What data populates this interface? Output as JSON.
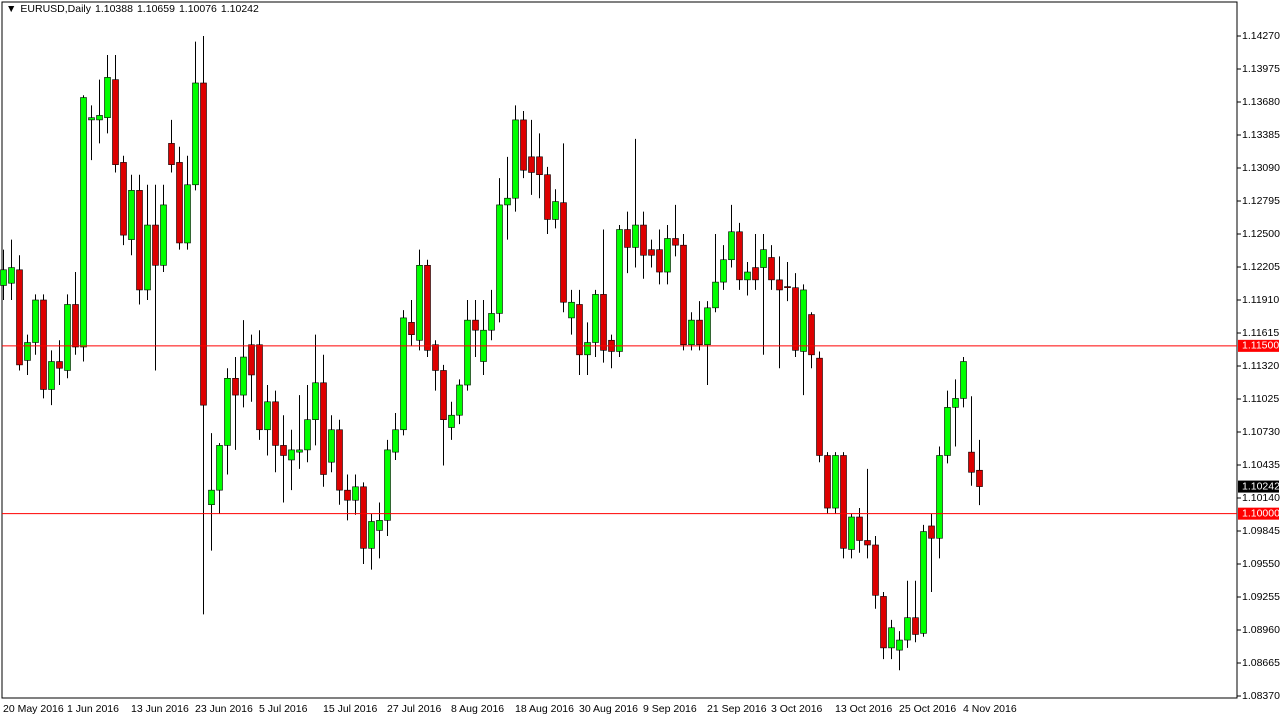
{
  "chart_data": {
    "type": "candlestick",
    "header": {
      "symbol": "EURUSD,Daily",
      "ohlc": [
        "1.10388",
        "1.10659",
        "1.10076",
        "1.10242"
      ]
    },
    "categories": [
      "20 May 2016",
      null,
      null,
      null,
      null,
      null,
      null,
      null,
      "1 Jun 2016",
      null,
      null,
      null,
      null,
      null,
      null,
      null,
      "13 Jun 2016",
      null,
      null,
      null,
      null,
      null,
      null,
      null,
      "23 Jun 2016",
      null,
      null,
      null,
      null,
      null,
      null,
      null,
      "5 Jul 2016",
      null,
      null,
      null,
      null,
      null,
      null,
      null,
      "15 Jul 2016",
      null,
      null,
      null,
      null,
      null,
      null,
      null,
      "27 Jul 2016",
      null,
      null,
      null,
      null,
      null,
      null,
      null,
      "8 Aug 2016",
      null,
      null,
      null,
      null,
      null,
      null,
      null,
      "18 Aug 2016",
      null,
      null,
      null,
      null,
      null,
      null,
      null,
      "30 Aug 2016",
      null,
      null,
      null,
      null,
      null,
      null,
      null,
      "9 Sep 2016",
      null,
      null,
      null,
      null,
      null,
      null,
      null,
      "21 Sep 2016",
      null,
      null,
      null,
      null,
      null,
      null,
      null,
      "3 Oct 2016",
      null,
      null,
      null,
      null,
      null,
      null,
      null,
      "13 Oct 2016",
      null,
      null,
      null,
      null,
      null,
      null,
      null,
      "25 Oct 2016",
      null,
      null,
      null,
      null,
      null,
      null,
      null,
      "4 Nov 2016",
      null,
      null
    ],
    "open": [
      1.1204,
      1.1206,
      1.1218,
      1.1137,
      1.1153,
      1.1191,
      1.1111,
      1.1136,
      1.1128,
      1.1187,
      1.1149,
      1.1352,
      1.1352,
      1.1354,
      1.1388,
      1.1314,
      1.1245,
      1.1289,
      1.12,
      1.1258,
      1.1222,
      1.1331,
      1.1314,
      1.1242,
      1.1294,
      1.1385,
      1.1008,
      1.1021,
      1.1061,
      1.1121,
      1.1106,
      1.1151,
      1.1151,
      1.1075,
      1.11,
      1.1061,
      1.1048,
      1.1055,
      1.1057,
      1.1084,
      1.1117,
      1.1046,
      1.1075,
      1.1021,
      1.1012,
      1.1024,
      1.0969,
      1.0985,
      1.0994,
      1.1055,
      1.1075,
      1.1171,
      1.1155,
      1.1222,
      1.1151,
      1.1128,
      1.1077,
      1.1088,
      1.1115,
      1.1173,
      1.1136,
      1.1164,
      1.1179,
      1.1276,
      1.1282,
      1.1352,
      1.1319,
      1.1319,
      1.1303,
      1.1263,
      1.1278,
      1.1175,
      1.1187,
      1.1142,
      1.1153,
      1.1196,
      1.1155,
      1.1145,
      1.1254,
      1.1238,
      1.1258,
      1.1236,
      1.1236,
      1.1216,
      1.1246,
      1.124,
      1.1151,
      1.1173,
      1.1151,
      1.1184,
      1.1207,
      1.1227,
      1.1252,
      1.1209,
      1.122,
      1.122,
      1.1229,
      1.1209,
      1.1203,
      1.1202,
      1.1145,
      1.1178,
      1.1139,
      1.1052,
      1.1005,
      1.1052,
      1.0968,
      1.0997,
      1.0976,
      1.0972,
      1.0926,
      1.088,
      1.0878,
      1.0887,
      1.0907,
      1.0893,
      1.0989,
      1.0978,
      1.1052,
      1.1095,
      1.1103,
      1.1055,
      1.10388
    ],
    "high": [
      1.1236,
      1.1245,
      1.1231,
      1.116,
      1.1196,
      1.1196,
      1.1146,
      1.1155,
      1.1196,
      1.1216,
      1.1374,
      1.1365,
      1.1388,
      1.141,
      1.141,
      1.132,
      1.1303,
      1.1303,
      1.1294,
      1.1294,
      1.1294,
      1.1352,
      1.1328,
      1.132,
      1.1422,
      1.1427,
      1.1072,
      1.1063,
      1.113,
      1.114,
      1.1173,
      1.116,
      1.1164,
      1.1115,
      1.111,
      1.1088,
      1.1075,
      1.1106,
      1.1115,
      1.116,
      1.1142,
      1.1088,
      1.1084,
      1.1035,
      1.1035,
      1.1028,
      1.1,
      1.101,
      1.1066,
      1.109,
      1.1182,
      1.1191,
      1.1236,
      1.1227,
      1.1155,
      1.1133,
      1.11,
      1.112,
      1.1191,
      1.1191,
      1.1191,
      1.12,
      1.13,
      1.1319,
      1.1365,
      1.136,
      1.1352,
      1.134,
      1.131,
      1.129,
      1.1331,
      1.12,
      1.12,
      1.1171,
      1.12,
      1.1254,
      1.116,
      1.1258,
      1.127,
      1.1335,
      1.127,
      1.1245,
      1.1254,
      1.1258,
      1.1276,
      1.125,
      1.118,
      1.119,
      1.119,
      1.125,
      1.124,
      1.1276,
      1.126,
      1.1225,
      1.125,
      1.125,
      1.124,
      1.123,
      1.1225,
      1.1215,
      1.1205,
      1.118,
      1.1145,
      1.1055,
      1.1055,
      1.1055,
      1.1,
      1.1005,
      1.104,
      1.098,
      1.093,
      1.0905,
      1.0895,
      1.094,
      1.094,
      1.099,
      1.1,
      1.106,
      1.111,
      1.112,
      1.114,
      1.1105,
      1.10659
    ],
    "low": [
      1.1191,
      1.1191,
      1.1128,
      1.1124,
      1.1142,
      1.1103,
      1.1097,
      1.1115,
      1.1121,
      1.1142,
      1.1136,
      1.1316,
      1.1331,
      1.134,
      1.1305,
      1.124,
      1.1231,
      1.1187,
      1.1191,
      1.1128,
      1.1216,
      1.1305,
      1.1236,
      1.1236,
      1.1289,
      1.091,
      1.0967,
      1.1,
      1.1035,
      1.1057,
      1.1095,
      1.11,
      1.1066,
      1.1052,
      1.1037,
      1.101,
      1.1021,
      1.104,
      1.1046,
      1.1061,
      1.1024,
      1.1037,
      1.1008,
      1.0994,
      1.0999,
      1.0955,
      1.095,
      1.096,
      1.098,
      1.1048,
      1.107,
      1.115,
      1.1146,
      1.114,
      1.111,
      1.1043,
      1.1066,
      1.108,
      1.111,
      1.114,
      1.1124,
      1.1155,
      1.1171,
      1.1245,
      1.127,
      1.13,
      1.1285,
      1.1282,
      1.125,
      1.1255,
      1.118,
      1.116,
      1.1124,
      1.1124,
      1.114,
      1.1135,
      1.113,
      1.114,
      1.1215,
      1.122,
      1.121,
      1.122,
      1.1205,
      1.1205,
      1.123,
      1.1146,
      1.1146,
      1.1146,
      1.1115,
      1.118,
      1.12,
      1.122,
      1.12,
      1.1195,
      1.12,
      1.1142,
      1.12,
      1.113,
      1.119,
      1.114,
      1.1106,
      1.113,
      1.1046,
      1.1,
      1.1,
      1.096,
      1.096,
      1.0965,
      1.096,
      1.0915,
      1.087,
      1.087,
      1.086,
      1.088,
      1.0885,
      1.089,
      1.093,
      1.096,
      1.1045,
      1.106,
      1.1095,
      1.1025,
      1.10076
    ],
    "close": [
      1.1218,
      1.122,
      1.1133,
      1.1153,
      1.1191,
      1.1111,
      1.1136,
      1.113,
      1.1187,
      1.1149,
      1.1372,
      1.1354,
      1.1356,
      1.139,
      1.1312,
      1.1249,
      1.1289,
      1.12,
      1.1258,
      1.1222,
      1.1276,
      1.1312,
      1.1242,
      1.1294,
      1.1385,
      1.1097,
      1.1021,
      1.1061,
      1.1121,
      1.1106,
      1.114,
      1.1124,
      1.1075,
      1.11,
      1.1061,
      1.1052,
      1.1057,
      1.1057,
      1.1084,
      1.1117,
      1.1035,
      1.1075,
      1.1021,
      1.1012,
      1.1024,
      1.0969,
      1.0993,
      1.0994,
      1.1057,
      1.1075,
      1.1175,
      1.116,
      1.1222,
      1.1146,
      1.1128,
      1.1084,
      1.1088,
      1.1115,
      1.1173,
      1.1164,
      1.1164,
      1.1179,
      1.1276,
      1.1282,
      1.1352,
      1.1307,
      1.1305,
      1.1303,
      1.1263,
      1.1279,
      1.1189,
      1.1189,
      1.1142,
      1.1153,
      1.1196,
      1.1146,
      1.1145,
      1.1254,
      1.1238,
      1.1258,
      1.1231,
      1.1231,
      1.1216,
      1.1246,
      1.124,
      1.1151,
      1.1173,
      1.1151,
      1.1184,
      1.1207,
      1.1227,
      1.1252,
      1.1209,
      1.1216,
      1.1209,
      1.1236,
      1.1209,
      1.12,
      1.1202,
      1.1146,
      1.12,
      1.1142,
      1.1052,
      1.1005,
      1.1052,
      1.0969,
      1.0997,
      1.0976,
      1.0972,
      1.0927,
      1.088,
      1.0898,
      1.0887,
      1.0907,
      1.0892,
      1.0984,
      1.0978,
      1.1052,
      1.1095,
      1.1103,
      1.1136,
      1.1037,
      1.10242
    ],
    "up_color": "#00ff00",
    "down_color": "#dd0000",
    "wick_color": "#000000",
    "ylim": [
      1.08352,
      1.14574
    ],
    "yticks": [
      {
        "value": 1.0837,
        "label": "1.08370"
      },
      {
        "value": 1.08665,
        "label": "1.08665"
      },
      {
        "value": 1.0896,
        "label": "1.08960"
      },
      {
        "value": 1.09255,
        "label": "1.09255"
      },
      {
        "value": 1.0955,
        "label": "1.09550"
      },
      {
        "value": 1.09845,
        "label": "1.09845"
      },
      {
        "value": 1.1014,
        "label": "1.10140"
      },
      {
        "value": 1.10435,
        "label": "1.10435"
      },
      {
        "value": 1.1073,
        "label": "1.10730"
      },
      {
        "value": 1.11025,
        "label": "1.11025"
      },
      {
        "value": 1.1132,
        "label": "1.11320"
      },
      {
        "value": 1.11615,
        "label": "1.11615"
      },
      {
        "value": 1.1191,
        "label": "1.11910"
      },
      {
        "value": 1.12205,
        "label": "1.12205"
      },
      {
        "value": 1.125,
        "label": "1.12500"
      },
      {
        "value": 1.12795,
        "label": "1.12795"
      },
      {
        "value": 1.1309,
        "label": "1.13090"
      },
      {
        "value": 1.13385,
        "label": "1.13385"
      },
      {
        "value": 1.1368,
        "label": "1.13680"
      },
      {
        "value": 1.13975,
        "label": "1.13975"
      },
      {
        "value": 1.1427,
        "label": "1.14270"
      }
    ],
    "hlines": [
      {
        "value": 1.115,
        "label": "1.11500",
        "color": "#ff0000"
      },
      {
        "value": 1.1,
        "label": "1.10000",
        "color": "#ff0000"
      }
    ],
    "last_price": {
      "value": 1.10242,
      "label": "1.10242",
      "color": "#000000"
    },
    "grid": false
  }
}
